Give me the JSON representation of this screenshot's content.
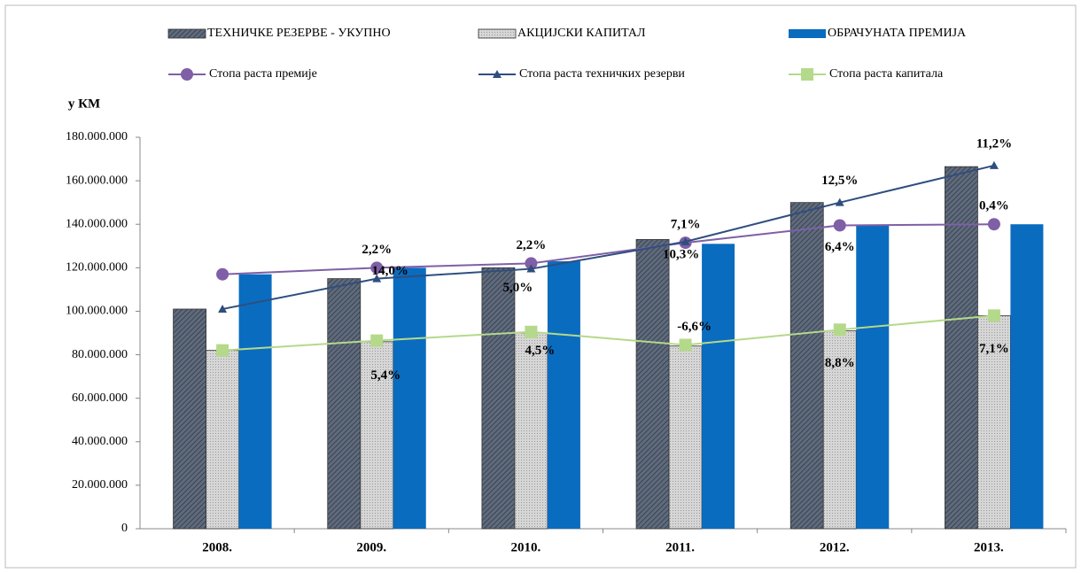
{
  "chart_data": {
    "type": "bar_line",
    "y_label": "у КМ",
    "categories": [
      "2008.",
      "2009.",
      "2010.",
      "2011.",
      "2012.",
      "2013."
    ],
    "ylim": [
      0,
      180000000
    ],
    "yticks": [
      0,
      {
        "value": 20000000,
        "label": "20.000.000"
      },
      {
        "value": 40000000,
        "label": "40.000.000"
      },
      {
        "value": 60000000,
        "label": "60.000.000"
      },
      {
        "value": 80000000,
        "label": "80.000.000"
      },
      {
        "value": 100000000,
        "label": "100.000.000"
      },
      {
        "value": 120000000,
        "label": "120.000.000"
      },
      {
        "value": 140000000,
        "label": "140.000.000"
      },
      {
        "value": 160000000,
        "label": "160.000.000"
      },
      {
        "value": 180000000,
        "label": "180.000.000"
      }
    ],
    "bar_series": [
      {
        "name": "ТЕХНИЧКЕ РЕЗЕРВЕ - УКУПНО",
        "color": "#5f6b7d",
        "values": [
          101000000,
          115000000,
          120000000,
          133000000,
          150000000,
          166500000
        ]
      },
      {
        "name": "АКЦИЈСКИ КАПИТАЛ",
        "color": "#c9c9c9",
        "values": [
          82000000,
          86000000,
          90000000,
          84000000,
          91000000,
          98000000
        ]
      },
      {
        "name": "ОБРАЧУНАТА ПРЕМИЈА",
        "color": "#0a6cbf",
        "values": [
          117000000,
          120000000,
          123000000,
          131000000,
          139500000,
          140000000
        ]
      }
    ],
    "line_series": [
      {
        "name": "Стопа раста премије",
        "color": "#7f5fa6",
        "marker": "circle",
        "values": [
          117000000,
          120000000,
          122000000,
          131500000,
          139500000,
          140000000
        ],
        "point_labels": [
          null,
          "2,2%",
          "2,2%",
          "7,1%",
          "6,4%",
          "0,4%"
        ]
      },
      {
        "name": "Стопа раста техничких резерви",
        "color": "#2f4e7e",
        "marker": "triangle",
        "values": [
          101000000,
          115000000,
          119500000,
          132000000,
          150000000,
          167000000
        ],
        "point_labels": [
          null,
          "14,0%",
          "5,0%",
          "10,3%",
          "12,5%",
          "11,2%"
        ]
      },
      {
        "name": "Стопа раста капитала",
        "color": "#b5d98a",
        "marker": "square",
        "values": [
          82000000,
          86500000,
          90500000,
          84500000,
          91500000,
          98000000
        ],
        "point_labels": [
          null,
          "5,4%",
          "4,5%",
          "-6,6%",
          "8,8%",
          "7,1%"
        ]
      }
    ]
  }
}
